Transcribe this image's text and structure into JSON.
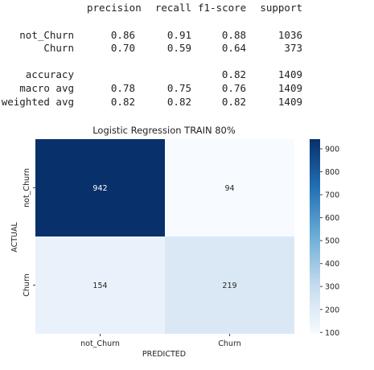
{
  "report": {
    "headers": [
      "precision",
      "recall",
      "f1-score",
      "support"
    ],
    "rows": [
      {
        "label": "not_Churn",
        "precision": "0.86",
        "recall": "0.91",
        "f1": "0.88",
        "support": "1036"
      },
      {
        "label": "Churn",
        "precision": "0.70",
        "recall": "0.59",
        "f1": "0.64",
        "support": "373"
      },
      {
        "label": "accuracy",
        "precision": "",
        "recall": "",
        "f1": "0.82",
        "support": "1409"
      },
      {
        "label": "macro avg",
        "precision": "0.78",
        "recall": "0.75",
        "f1": "0.76",
        "support": "1409"
      },
      {
        "label": "weighted avg",
        "precision": "0.82",
        "recall": "0.82",
        "f1": "0.82",
        "support": "1409"
      }
    ]
  },
  "chart_data": {
    "type": "heatmap",
    "title": "Logistic Regression TRAIN 80%",
    "xlabel": "PREDICTED",
    "ylabel": "ACTUAL",
    "x_categories": [
      "not_Churn",
      "Churn"
    ],
    "y_categories": [
      "not_Churn",
      "Churn"
    ],
    "values": [
      [
        942,
        94
      ],
      [
        154,
        219
      ]
    ],
    "colormap": "Blues",
    "colorbar_ticks": [
      100,
      200,
      300,
      400,
      500,
      600,
      700,
      800,
      900
    ],
    "vmin": 94,
    "vmax": 942
  }
}
